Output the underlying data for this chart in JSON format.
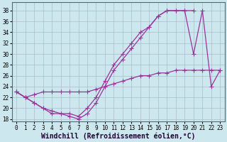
{
  "xlabel": "Windchill (Refroidissement éolien,°C)",
  "bg_color": "#cce8ee",
  "grid_color": "#aabbcc",
  "line_color": "#993399",
  "x": [
    0,
    1,
    2,
    3,
    4,
    5,
    6,
    7,
    8,
    9,
    10,
    11,
    12,
    13,
    14,
    15,
    16,
    17,
    18,
    19,
    20,
    21,
    22,
    23
  ],
  "y_line1": [
    23,
    22,
    21,
    20,
    19,
    19,
    18.5,
    18,
    19,
    21,
    24,
    27,
    29,
    31,
    33,
    35,
    37,
    38,
    38,
    38,
    30,
    38,
    24,
    27
  ],
  "y_line2": [
    23,
    22,
    21,
    20,
    19.5,
    19,
    19,
    18.5,
    20,
    22,
    25,
    28,
    30,
    32,
    34,
    35,
    37,
    38,
    38,
    38,
    38,
    null,
    null,
    null
  ],
  "y_line3": [
    23,
    22,
    22.5,
    23,
    23,
    23,
    23,
    23,
    23,
    23.5,
    24,
    24.5,
    25,
    25.5,
    26,
    26,
    26.5,
    26.5,
    27,
    27,
    27,
    27,
    27,
    27
  ],
  "ylim": [
    17.5,
    39.5
  ],
  "xlim": [
    -0.5,
    23.5
  ],
  "yticks": [
    18,
    20,
    22,
    24,
    26,
    28,
    30,
    32,
    34,
    36,
    38
  ],
  "xticks": [
    0,
    1,
    2,
    3,
    4,
    5,
    6,
    7,
    8,
    9,
    10,
    11,
    12,
    13,
    14,
    15,
    16,
    17,
    18,
    19,
    20,
    21,
    22,
    23
  ],
  "tick_fontsize": 5.5,
  "xlabel_fontsize": 7.0,
  "marker_size": 2.5,
  "line_width": 0.9
}
